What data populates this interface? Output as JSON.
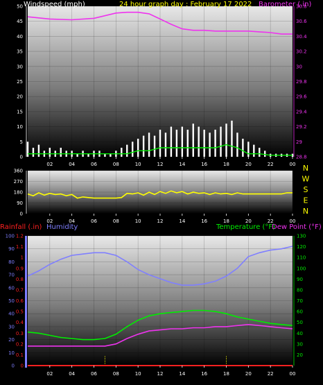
{
  "colors": {
    "windspeed": "#ffffff",
    "gust_avg": "#00ee00",
    "direction": "#ffff00",
    "barometer": "#ee33ee",
    "rainfall": "#ff2020",
    "humidity": "#7f7fff",
    "temperature": "#00ee00",
    "dewpoint": "#ee33ee",
    "daily_rain_marker": "#ffff00"
  },
  "chart_data": [
    {
      "type": "line",
      "title": "24 hour graph day : February 17 2022",
      "ylabel": "Windspeed (mph)",
      "y2label": "Barometer (.in)",
      "ylim": [
        0,
        50
      ],
      "y2lim": [
        28.8,
        30.8
      ],
      "xticks": [
        "02",
        "04",
        "06",
        "08",
        "10",
        "12",
        "14",
        "16",
        "18",
        "20",
        "22",
        "00"
      ],
      "yticks": [
        "0",
        "5",
        "10",
        "15",
        "20",
        "25",
        "30",
        "35",
        "40",
        "45",
        "50"
      ],
      "y2ticks": [
        "28.8",
        "29",
        "29.2",
        "29.4",
        "29.6",
        "29.8",
        "30",
        "30.2",
        "30.4",
        "30.6",
        "30.8"
      ],
      "series": [
        {
          "name": "Windspeed (mph)",
          "axis": "left",
          "x": [
            0,
            0.5,
            1,
            1.5,
            2,
            2.5,
            3,
            3.5,
            4,
            4.5,
            5,
            5.5,
            6,
            6.5,
            7,
            7.5,
            8,
            8.5,
            9,
            9.5,
            10,
            10.5,
            11,
            11.5,
            12,
            12.5,
            13,
            13.5,
            14,
            14.5,
            15,
            15.5,
            16,
            16.5,
            17,
            17.5,
            18,
            18.5,
            19,
            19.5,
            20,
            20.5,
            21,
            21.5,
            22,
            22.5,
            23,
            23.5,
            24
          ],
          "y": [
            5,
            3,
            4,
            2,
            3,
            2,
            3,
            2,
            2,
            1,
            2,
            1,
            2,
            2,
            1,
            1,
            2,
            3,
            4,
            5,
            6,
            7,
            8,
            7,
            9,
            8,
            10,
            9,
            10,
            9,
            11,
            10,
            9,
            8,
            9,
            10,
            11,
            12,
            8,
            6,
            5,
            4,
            3,
            2,
            1,
            1,
            1,
            1,
            1
          ]
        },
        {
          "name": "Wind average (mph)",
          "axis": "left",
          "x": [
            0,
            1,
            2,
            3,
            4,
            5,
            6,
            7,
            8,
            9,
            10,
            11,
            12,
            13,
            14,
            15,
            16,
            17,
            18,
            19,
            20,
            21,
            22,
            23,
            24
          ],
          "y": [
            1,
            1,
            1,
            1,
            1,
            1,
            1,
            1,
            1,
            1,
            2,
            2,
            3,
            3,
            3,
            3,
            3,
            3,
            4,
            3,
            1,
            1,
            0.5,
            0.5,
            0.5
          ]
        },
        {
          "name": "Barometer (.in)",
          "axis": "right",
          "x": [
            0,
            2,
            4,
            6,
            8,
            9,
            10,
            11,
            12,
            13,
            14,
            15,
            16,
            17,
            18,
            19,
            20,
            21,
            22,
            23,
            24
          ],
          "y": [
            30.66,
            30.63,
            30.62,
            30.64,
            30.71,
            30.72,
            30.72,
            30.7,
            30.63,
            30.56,
            30.5,
            30.48,
            30.48,
            30.47,
            30.47,
            30.47,
            30.47,
            30.46,
            30.45,
            30.43,
            30.43
          ]
        }
      ]
    },
    {
      "type": "scatter",
      "ylim": [
        0,
        360
      ],
      "yticks": [
        "0",
        "90",
        "180",
        "270",
        "360"
      ],
      "direction_labels": [
        "N",
        "W",
        "S",
        "E",
        "N"
      ],
      "xticks": [
        "02",
        "04",
        "06",
        "08",
        "10",
        "12",
        "14",
        "16",
        "18",
        "20",
        "22",
        "00"
      ],
      "series": [
        {
          "name": "Wind direction",
          "x": [
            0,
            0.5,
            1,
            1.5,
            2,
            2.5,
            3,
            3.5,
            4,
            4.5,
            5,
            5.5,
            6,
            6.5,
            7,
            7.5,
            8,
            8.5,
            9,
            9.5,
            10,
            10.5,
            11,
            11.5,
            12,
            12.5,
            13,
            13.5,
            14,
            14.5,
            15,
            15.5,
            16,
            16.5,
            17,
            17.5,
            18,
            18.5,
            19,
            19.5,
            20,
            20.5,
            21,
            21.5,
            22,
            22.5,
            23,
            23.5,
            24
          ],
          "y": [
            165,
            150,
            175,
            155,
            170,
            160,
            165,
            150,
            160,
            130,
            140,
            135,
            130,
            130,
            130,
            130,
            130,
            135,
            170,
            165,
            175,
            155,
            180,
            160,
            185,
            170,
            190,
            175,
            185,
            165,
            180,
            170,
            175,
            160,
            175,
            165,
            170,
            160,
            175,
            165,
            165,
            165,
            165,
            165,
            165,
            165,
            165,
            175,
            175
          ]
        }
      ]
    },
    {
      "type": "line",
      "ylabel": "Rainfall (.in)",
      "ylabel2": "Humidity",
      "y2label": "Temperature (°F)",
      "y2label2": "Dew Point (°F)",
      "ylim_humidity": [
        0,
        100
      ],
      "ylim_rain": [
        0,
        1.2
      ],
      "y2lim": [
        10,
        130
      ],
      "humidity_ticks": [
        "0",
        "10",
        "20",
        "30",
        "40",
        "50",
        "60",
        "70",
        "80",
        "90",
        "100"
      ],
      "rain_ticks": [
        "0",
        "0.1",
        "0.2",
        "0.3",
        "0.4",
        "0.5",
        "0.6",
        "0.7",
        "0.8",
        "0.9",
        "1",
        "1.1",
        "1.2"
      ],
      "temp_ticks": [
        "20",
        "30",
        "40",
        "50",
        "60",
        "70",
        "80",
        "90",
        "100",
        "110",
        "120",
        "130"
      ],
      "xticks": [
        "02",
        "04",
        "06",
        "08",
        "10",
        "12",
        "14",
        "16",
        "18",
        "20",
        "22",
        "00"
      ],
      "daily_rain_marker_hours": [
        7,
        18
      ],
      "series": [
        {
          "name": "Humidity",
          "axis": "humidity",
          "x": [
            0,
            1,
            2,
            3,
            4,
            5,
            6,
            7,
            8,
            9,
            10,
            11,
            12,
            13,
            14,
            15,
            16,
            17,
            18,
            19,
            20,
            21,
            22,
            23,
            24
          ],
          "y": [
            69,
            73,
            78,
            82,
            85,
            86,
            87,
            87,
            85,
            80,
            74,
            70,
            67,
            64,
            62,
            62,
            63,
            65,
            69,
            75,
            84,
            87,
            89,
            90,
            92
          ]
        },
        {
          "name": "Rainfall (.in)",
          "axis": "rain",
          "x": [
            0,
            24
          ],
          "y": [
            0,
            0
          ]
        },
        {
          "name": "Temperature (°F)",
          "axis": "right",
          "x": [
            0,
            1,
            2,
            3,
            4,
            5,
            6,
            7,
            8,
            9,
            10,
            11,
            12,
            13,
            14,
            15,
            16,
            17,
            18,
            19,
            20,
            21,
            22,
            23,
            24
          ],
          "y": [
            41,
            40,
            38,
            36,
            35,
            34,
            34,
            35,
            39,
            46,
            52,
            56,
            58,
            59,
            60,
            61,
            61,
            60,
            58,
            55,
            53,
            51,
            49,
            48,
            47
          ]
        },
        {
          "name": "Dew Point (°F)",
          "axis": "right",
          "x": [
            0,
            1,
            2,
            3,
            4,
            5,
            6,
            7,
            8,
            9,
            10,
            11,
            12,
            13,
            14,
            15,
            16,
            17,
            18,
            19,
            20,
            21,
            22,
            23,
            24
          ],
          "y": [
            28,
            28,
            28,
            28,
            28,
            28,
            28,
            28,
            30,
            35,
            39,
            42,
            43,
            44,
            44,
            45,
            45,
            46,
            46,
            47,
            48,
            47,
            46,
            45,
            44
          ]
        }
      ]
    }
  ]
}
